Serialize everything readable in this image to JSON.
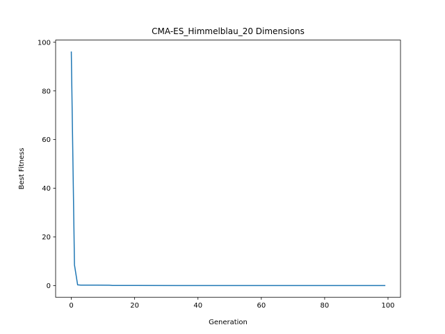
{
  "chart_data": {
    "type": "line",
    "title": "CMA-ES_Himmelblau_20 Dimensions",
    "xlabel": "Generation",
    "ylabel": "Best Fitness",
    "xlim": [
      -4.95,
      103.95
    ],
    "ylim": [
      -4.8,
      100.9
    ],
    "xticks": [
      0,
      20,
      40,
      60,
      80,
      100
    ],
    "yticks": [
      0,
      20,
      40,
      60,
      80,
      100
    ],
    "grid": false,
    "legend": "none",
    "series": [
      {
        "color": "#1f77b4",
        "x": [
          0,
          1,
          2,
          3,
          5,
          8,
          12,
          13,
          20,
          40,
          60,
          80,
          99
        ],
        "y": [
          96.0,
          8.5,
          0.3,
          0.2,
          0.2,
          0.2,
          0.15,
          0.05,
          0.03,
          0.02,
          0.02,
          0.02,
          0.02
        ]
      }
    ]
  }
}
